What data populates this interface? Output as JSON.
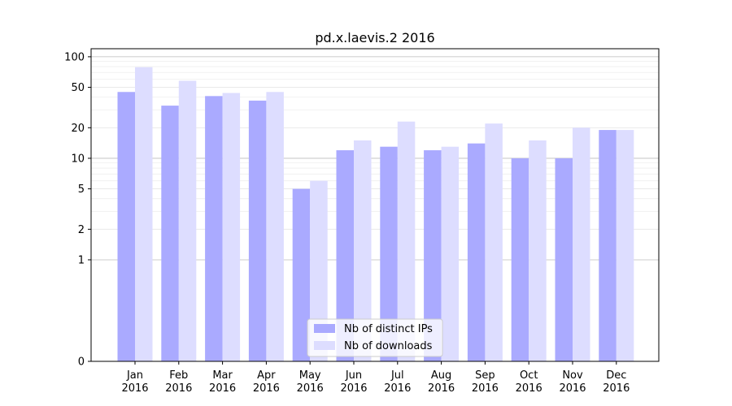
{
  "chart_data": {
    "type": "bar",
    "title": "pd.x.laevis.2 2016",
    "xlabel": "",
    "ylabel": "",
    "yscale": "symlog",
    "ylim": [
      0,
      120
    ],
    "yticks": [
      0,
      1,
      2,
      5,
      10,
      20,
      50,
      100
    ],
    "ytick_labels": [
      "0",
      "1",
      "2",
      "5",
      "10",
      "20",
      "50",
      "100"
    ],
    "categories": [
      {
        "month": "Jan",
        "year": "2016"
      },
      {
        "month": "Feb",
        "year": "2016"
      },
      {
        "month": "Mar",
        "year": "2016"
      },
      {
        "month": "Apr",
        "year": "2016"
      },
      {
        "month": "May",
        "year": "2016"
      },
      {
        "month": "Jun",
        "year": "2016"
      },
      {
        "month": "Jul",
        "year": "2016"
      },
      {
        "month": "Aug",
        "year": "2016"
      },
      {
        "month": "Sep",
        "year": "2016"
      },
      {
        "month": "Oct",
        "year": "2016"
      },
      {
        "month": "Nov",
        "year": "2016"
      },
      {
        "month": "Dec",
        "year": "2016"
      }
    ],
    "series": [
      {
        "name": "Nb of distinct IPs",
        "color": "#aaaaff",
        "values": [
          45,
          33,
          41,
          37,
          5,
          12,
          13,
          12,
          14,
          10,
          10,
          19
        ]
      },
      {
        "name": "Nb of downloads",
        "color": "#ddddff",
        "values": [
          79,
          58,
          44,
          45,
          6,
          15,
          23,
          13,
          22,
          15,
          20,
          19
        ]
      }
    ],
    "legend_position": "bottom-center"
  }
}
